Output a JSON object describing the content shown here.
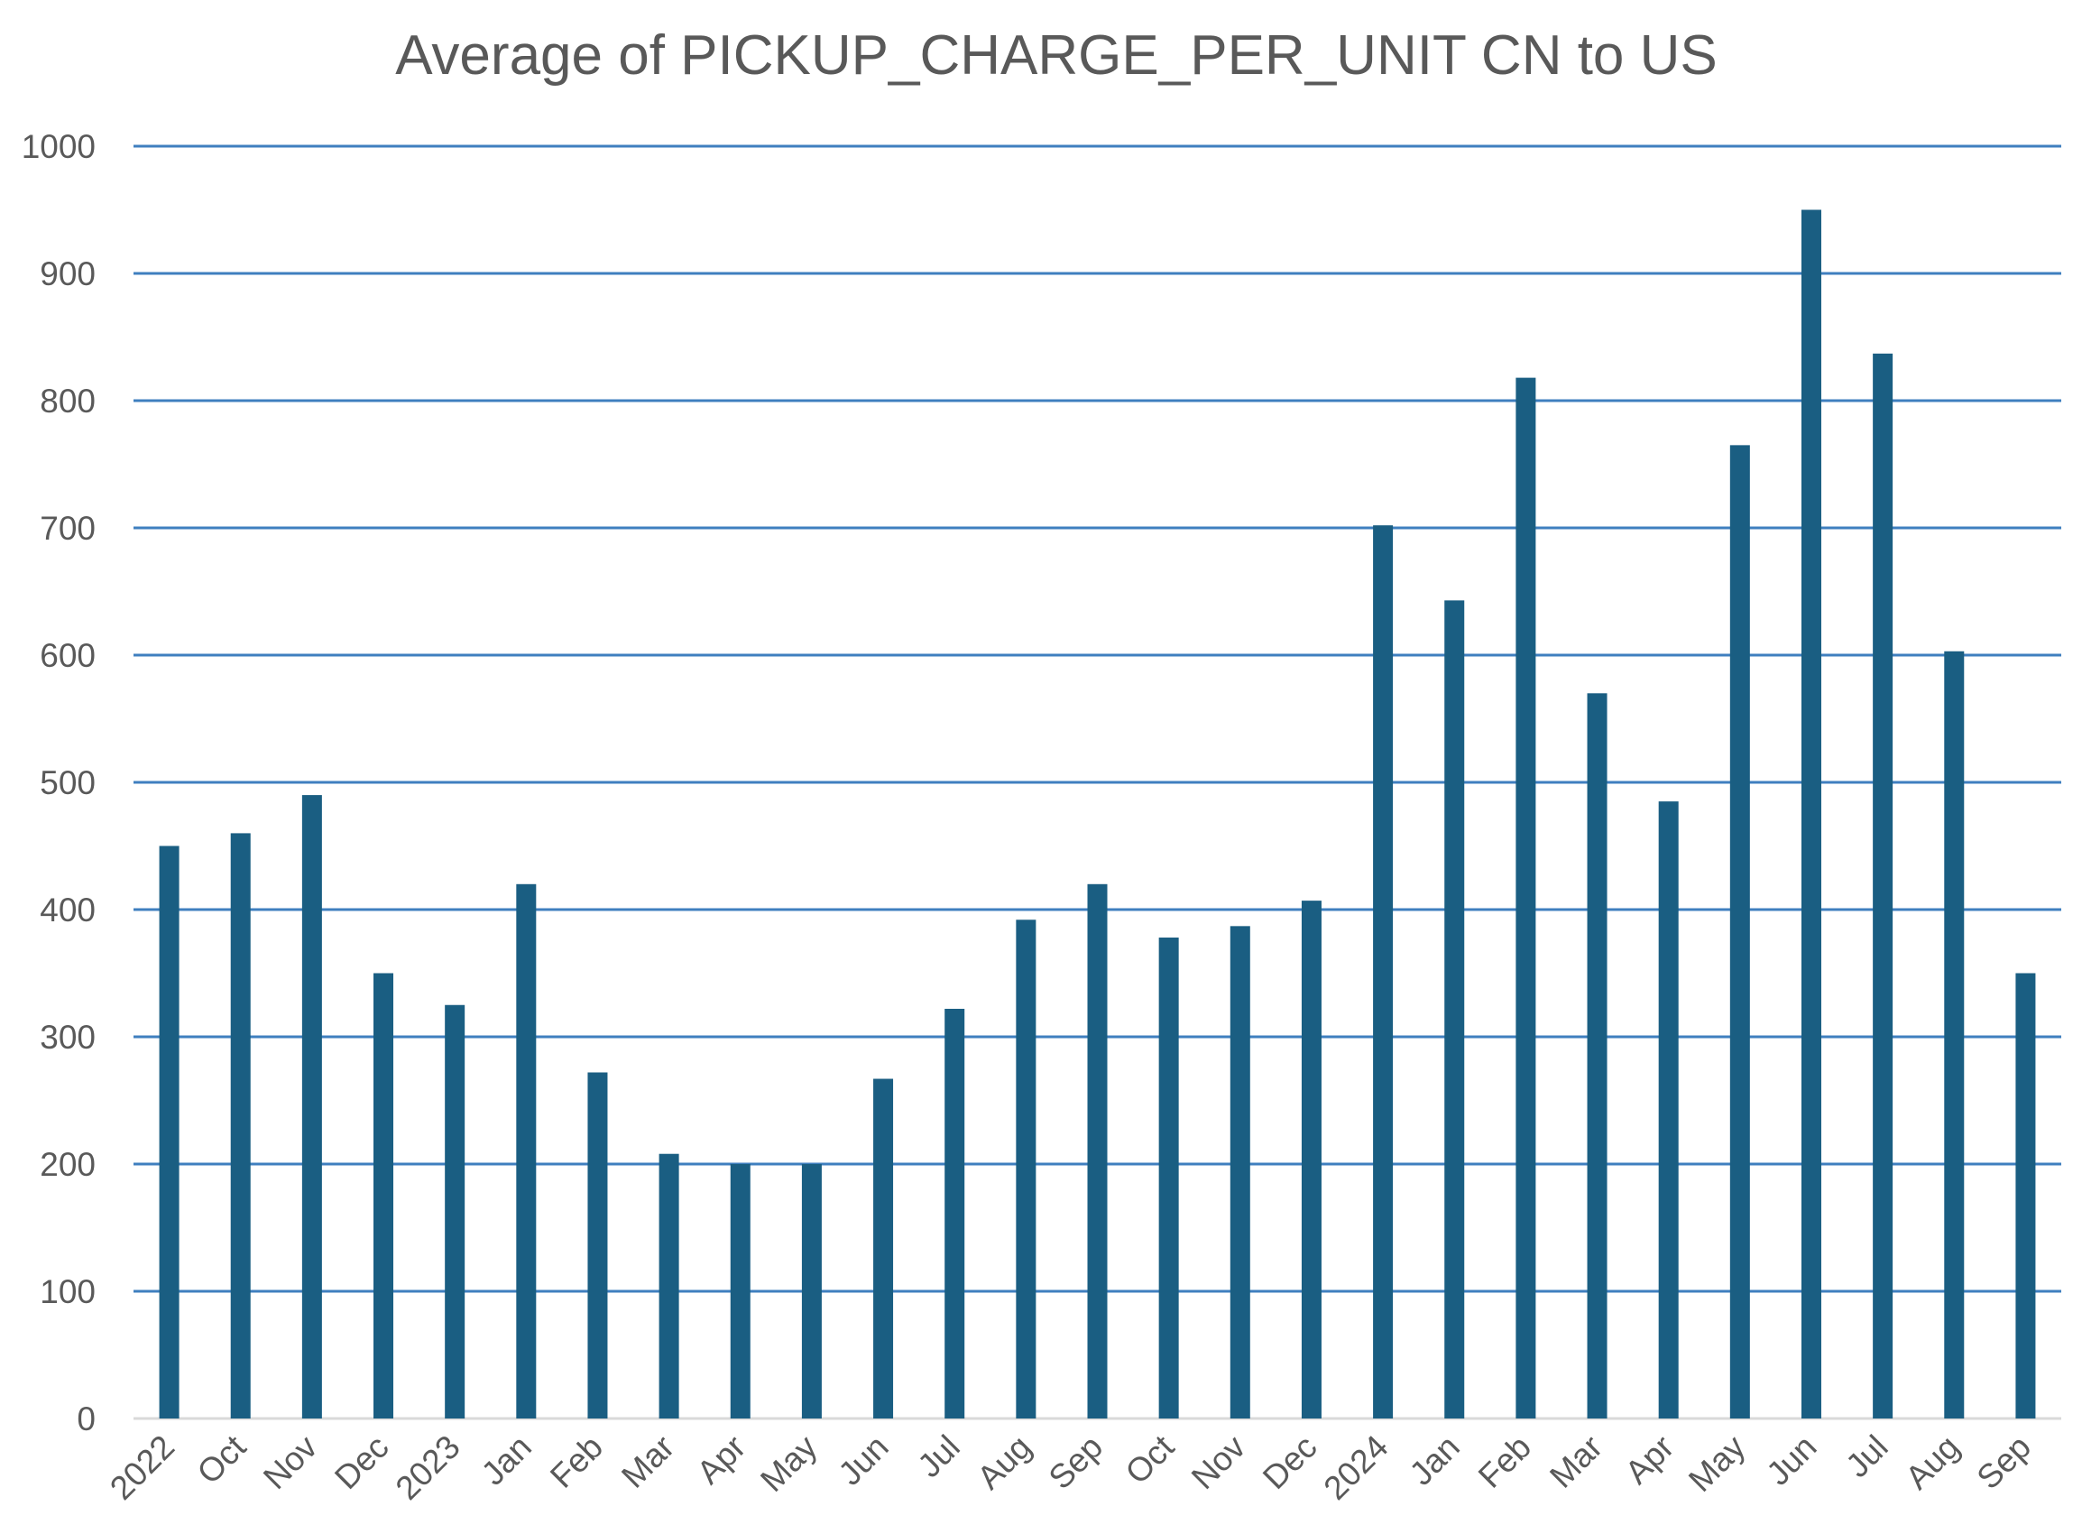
{
  "chart_data": {
    "type": "bar",
    "title": "Average of PICKUP_CHARGE_PER_UNIT CN to US",
    "xlabel": "",
    "ylabel": "",
    "ylim": [
      0,
      1000
    ],
    "yticks": [
      0,
      100,
      200,
      300,
      400,
      500,
      600,
      700,
      800,
      900,
      1000
    ],
    "grid": true,
    "legend": "none",
    "categories": [
      "2022",
      "Oct",
      "Nov",
      "Dec",
      "2023",
      "Jan",
      "Feb",
      "Mar",
      "Apr",
      "May",
      "Jun",
      "Jul",
      "Aug",
      "Sep",
      "Oct",
      "Nov",
      "Dec",
      "2024",
      "Jan",
      "Feb",
      "Mar",
      "Apr",
      "May",
      "Jun",
      "Jul",
      "Aug",
      "Sep"
    ],
    "values": [
      450,
      460,
      490,
      350,
      325,
      420,
      272,
      208,
      200,
      200,
      267,
      322,
      392,
      420,
      378,
      387,
      407,
      702,
      643,
      818,
      570,
      485,
      765,
      950,
      837,
      603,
      350
    ],
    "colors": {
      "bar": "#1a5e82",
      "grid": "#3f7fbf",
      "axis": "#d9d9d9",
      "text": "#595959"
    }
  }
}
